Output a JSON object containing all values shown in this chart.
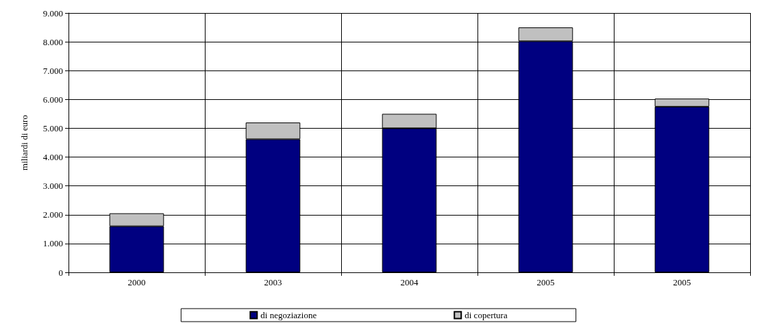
{
  "chart_data": {
    "type": "bar",
    "ylabel": "miliardi di euro",
    "stacked": true,
    "grid": true,
    "legend": "bottom",
    "categories": [
      "2000",
      "2003",
      "2004",
      "2005",
      "2005"
    ],
    "series": [
      {
        "name": "di negoziazione",
        "color": "#000080",
        "values": [
          1600,
          4620,
          5000,
          8020,
          5750
        ]
      },
      {
        "name": "di copertura",
        "color": "#c0c0c0",
        "values": [
          450,
          580,
          500,
          480,
          280
        ]
      }
    ],
    "ylim": [
      0,
      9000
    ],
    "yticks": [
      0,
      {
        "value": 1000,
        "label": "1.000"
      },
      {
        "value": 2000,
        "label": "2.000"
      },
      {
        "value": 3000,
        "label": "3.000"
      },
      {
        "value": 4000,
        "label": "4.000"
      },
      {
        "value": 5000,
        "label": "5.000"
      },
      {
        "value": 6000,
        "label": "6.000"
      },
      {
        "value": 7000,
        "label": "7.000"
      },
      {
        "value": 8000,
        "label": "8.000"
      },
      {
        "value": 9000,
        "label": "9.000"
      }
    ]
  }
}
